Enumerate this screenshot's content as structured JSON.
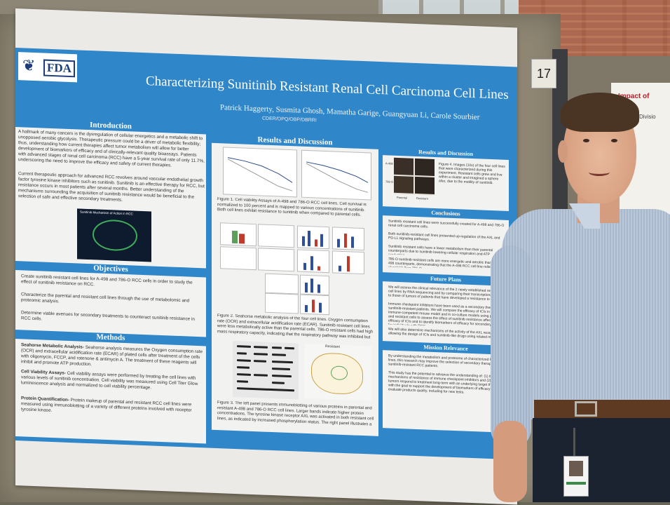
{
  "scene": {
    "booth_number": "17",
    "right_poster_title": "Impact of",
    "right_poster_sub": "Divisio"
  },
  "poster": {
    "logo_text": "FDA",
    "title": "Characterizing Sunitinib Resistant Renal Cell Carcinoma Cell Lines",
    "authors": "Patrick Haggerty, Susmita Ghosh, Mamatha Garige, Guangyuan Li, Carole Sourbier",
    "affiliation": "CDER/OPQ/OBP/DBRRI",
    "introduction": {
      "heading": "Introduction",
      "p1": "A hallmark of many cancers is the dysregulation of cellular energetics and a metabolic shift to unopposed aerobic glycolysis. Therapeutic pressure could be a driver of metabolic flexibility; thus, understanding how current therapies affect tumor metabolism will allow for better development of biomarkers of efficacy and of clinically-relevant quality bioassays. Patients with advanced stages of renal cell carcinoma (RCC) have a 5-year survival rate of only 11.7%, underscoring the need to improve the efficacy and safety of current therapies.",
      "p2": "Current therapeutic approach for advanced RCC revolves around vascular endothelial growth factor tyrosine kinase inhibitors such as sunitinib. Sunitinib is an effective therapy for RCC, but resistance occurs in most patients after several months. Better understanding of the mechanisms surrounding the acquisition of sunitinib resistance would be beneficial to the selection of safe and effective secondary treatments.",
      "figure_title": "Sunitinib Mechanism of Action in RCC"
    },
    "objectives": {
      "heading": "Objectives",
      "items": [
        "Create sunitinib resistant cell lines for A-498 and 786-O RCC cells in order to study the effect of sunitinib resistance on RCC.",
        "Characterize the parental and resistant cell lines through the use of metabolomic and proteomic analysis.",
        "Determine viable avenues for secondary treatments to counteract sunitinib resistance in RCC cells."
      ]
    },
    "methods": {
      "heading": "Methods",
      "items": [
        {
          "lead": "Seahorse Metabolic Analysis-",
          "text": " Seahorse analysis measures the Oxygen consumption rate (OCR) and extracellular acidification rate (ECAR) of plated cells after treatment of the cells with oligomycin, FCCP, and rotenone & antimycin A. The treatment of these reagents will inhibit and promote ATP production."
        },
        {
          "lead": "Cell Viability Assays-",
          "text": " Cell viability assays were performed by treating the cell lines with various levels of sunitinib concentration. Cell viability was measured using Cell Titer Glow luminescence analysis and normalized to cell viability percentage."
        },
        {
          "lead": "Protein Quantification-",
          "text": " Protein makeup of parental and resistant RCC cell lines were measured using immunoblotting of a variety of different proteins involved with receptor tyrosine kinase."
        }
      ]
    },
    "results": {
      "heading": "Results and Discussion",
      "fig1": "Figure 1. Cell viability Assays of A-498 and 786-O RCC cell lines. Cell survival is normalized to 100 percent and is mapped to various concentrations of sunitinib. Both cell lines exhibit resistance to sunitinib when compared to parental cells.",
      "fig2": "Figure 2. Seahorse metabolic analysis of the four cell lines. Oxygen consumption rate (OCR) and extracellular acidification rate (ECAR). Sunitinib resistant cell lines were less metabolically active than the parental cells. 786-O resistant cells had high mass respiratory capacity, indicating that the respiratory pathway was inhibited but not dysfunctional.",
      "fig3": "Figure 3. The left panel presents immunoblotting of various proteins in parental and resistant A-498 and 786-O RCC cell lines. Larger bands indicate higher protein concentrations. The tyrosine kinase receptor AXL was activated in both resistant cell lines, as indicated by increased phosphorylation status. The right panel illustrates a potential mechanism of resistance in a RCC tumor cell.",
      "diagram_label": "Resistant"
    },
    "right_col": {
      "heading": "Results and Discussion",
      "fig4": "Figure 4. Images (10x) of the four cell lines that were characterized during this experiment. Resistant cells grew and live within a cluster and imagined a sphere also, due to the motility of sunitinib.",
      "img_labels": [
        "A-498",
        "786-O",
        "Parental",
        "Resistant"
      ],
      "conclusions_heading": "Conclusions",
      "conclusions": [
        "Sunitinib resistant cell lines were successfully created for A-498 and 786-O renal cell carcinoma cells.",
        "Both sunitinib-resistant cell lines presented up-regulation of the AXL and PD-L1 signaling pathways.",
        "Sunitinib resistant cells have a lower metabolism than their parental counterparts due to sunitinib lowering cellular respiration and ATP production.",
        "786-O sunitinib resistant cells are more energetic and aerobic than their A-498 counterparts, demonstrating that the A-498 RCC cell line relies on glycolysis than 786-O."
      ],
      "future_heading": "Future Plans",
      "future": [
        "We will assess the clinical relevance of the 2 newly established resistant cell lines by RNA sequencing and by comparing their transcriptional profiles to those of tumors of patients that have developed a resistance to sunitinib.",
        "Immune checkpoint inhibitors have been used as a secondary therapy for sunitinib-resistant patients. We will compare the efficacy of ICIs in an immune-competent mouse model and in co-culture models using parental and resistant cells to assess the effect of sunitinib resistance affects the efficacy of ICIs and to identify biomarkers of efficacy for secondary therapy for individuals with RCC.",
        "We will also determine mechanisms of the activity of the AXL receptor, allowing the design of ICIs and sunitinib-like drugs using related molecules."
      ],
      "relevance_heading": "Mission Relevance",
      "relevance": [
        "By understanding the metabolism and proteome of characterized RCC cell lines, this research may improve the selection of secondary therapies for sunitinib-resistant RCC patients.",
        "This study has the potential to advance the understanding of: (1) the mechanisms of resistance of immune checkpoint inhibitors and (2) how tumors respond to treatment long-term with an underlying target therapy, with the goal to support the development of biomarkers of efficacy to evaluate products quality, including for new tests."
      ]
    }
  }
}
